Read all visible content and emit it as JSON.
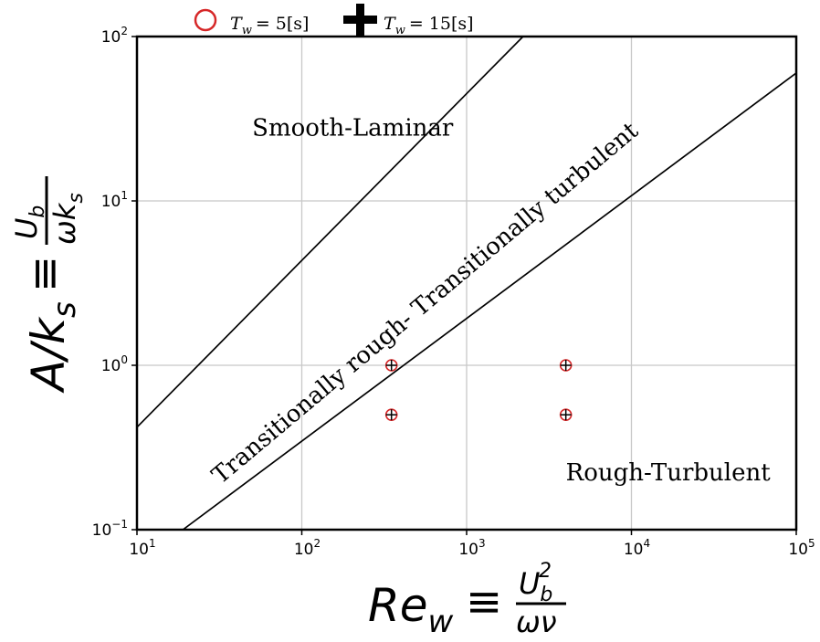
{
  "chart_data": {
    "type": "scatter",
    "xscale": "log",
    "yscale": "log",
    "xlim": [
      10,
      100000
    ],
    "ylim": [
      0.1,
      100
    ],
    "grid": true,
    "legend_position": "top-center",
    "xlabel": {
      "main": "Re",
      "sub": "w",
      "eq": "≡",
      "num_base": "U",
      "num_sub": "b",
      "num_sup": "2",
      "den": "ων"
    },
    "ylabel": {
      "main": "A/k",
      "sub": "s",
      "eq": "≡",
      "num_base": "U",
      "num_sub": "b",
      "den_base": "ωk",
      "den_sub": "s"
    },
    "xticks": [
      {
        "value": 10,
        "base": "10",
        "exp": "1"
      },
      {
        "value": 100,
        "base": "10",
        "exp": "2"
      },
      {
        "value": 1000,
        "base": "10",
        "exp": "3"
      },
      {
        "value": 10000,
        "base": "10",
        "exp": "4"
      },
      {
        "value": 100000,
        "base": "10",
        "exp": "5"
      }
    ],
    "yticks": [
      {
        "value": 0.1,
        "base": "10",
        "exp": "−1"
      },
      {
        "value": 1,
        "base": "10",
        "exp": "0"
      },
      {
        "value": 10,
        "base": "10",
        "exp": "1"
      },
      {
        "value": 100,
        "base": "10",
        "exp": "2"
      }
    ],
    "boundary_lines": [
      {
        "name": "upper",
        "points": [
          [
            10,
            0.42
          ],
          [
            2200,
            100
          ]
        ]
      },
      {
        "name": "lower",
        "points": [
          [
            19,
            0.1
          ],
          [
            100000,
            60
          ]
        ]
      }
    ],
    "regions": [
      {
        "label": "Smooth-Laminar",
        "x": 50,
        "y": 25
      },
      {
        "label": "Transitionally rough- Transitionally turbulent",
        "x": 600,
        "y": 2.2,
        "angle": -40
      },
      {
        "label": "Rough-Turbulent",
        "x": 4000,
        "y": 0.2
      }
    ],
    "series": [
      {
        "name_base": "T",
        "name_sub": "w",
        "name_value": "= 5[s]",
        "marker": "circle",
        "color": "#d62728",
        "points": [
          [
            350,
            1.0
          ],
          [
            350,
            0.5
          ],
          [
            4000,
            1.0
          ],
          [
            4000,
            0.5
          ]
        ]
      },
      {
        "name_base": "T",
        "name_sub": "w",
        "name_value": "= 15[s]",
        "marker": "plus",
        "color": "#000000",
        "points": [
          [
            350,
            1.0
          ],
          [
            350,
            0.5
          ],
          [
            4000,
            1.0
          ],
          [
            4000,
            0.5
          ]
        ]
      }
    ]
  }
}
